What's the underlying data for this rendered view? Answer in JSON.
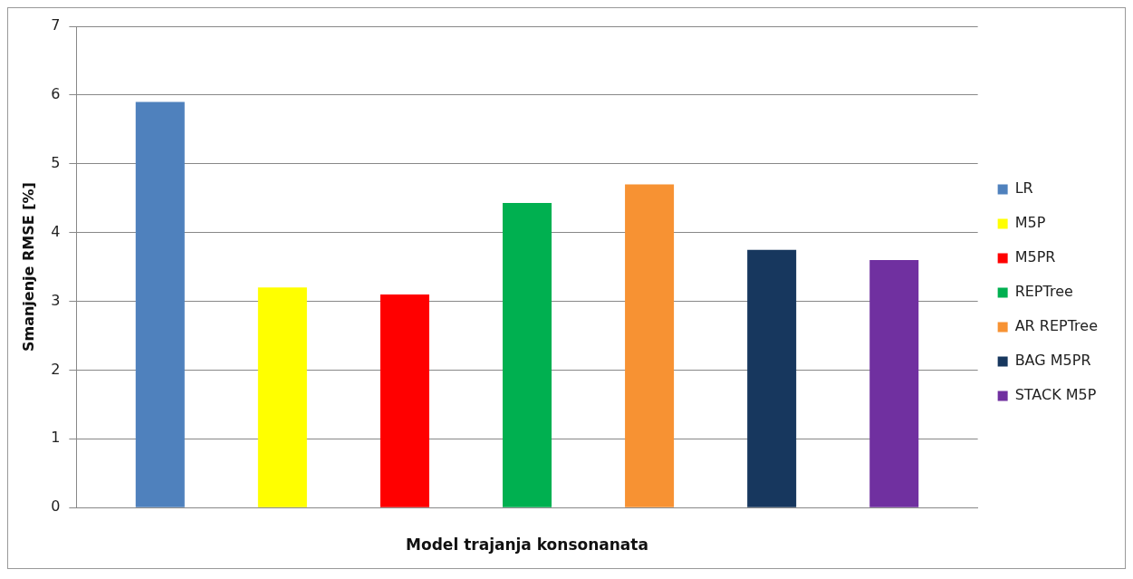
{
  "chart_data": {
    "type": "bar",
    "xlabel": "Model trajanja konsonanata",
    "ylabel": "Smanjenje RMSE [%]",
    "categories": [
      null
    ],
    "series": [
      {
        "name": "LR",
        "color": "#4f81bd",
        "values": [
          5.9
        ]
      },
      {
        "name": "M5P",
        "color": "#ffff00",
        "values": [
          3.2
        ]
      },
      {
        "name": "M5PR",
        "color": "#ff0000",
        "values": [
          3.1
        ]
      },
      {
        "name": "REPTree",
        "color": "#00b050",
        "values": [
          4.43
        ]
      },
      {
        "name": "AR REPTree",
        "color": "#f79233",
        "values": [
          4.7
        ]
      },
      {
        "name": "BAG M5PR",
        "color": "#17375e",
        "values": [
          3.75
        ]
      },
      {
        "name": "STACK M5P",
        "color": "#7030a0",
        "values": [
          3.6
        ]
      }
    ],
    "ylim": [
      0,
      7
    ],
    "yticks": [
      0,
      1,
      2,
      3,
      4,
      5,
      6,
      7
    ],
    "grid": "y",
    "legend": "right"
  }
}
